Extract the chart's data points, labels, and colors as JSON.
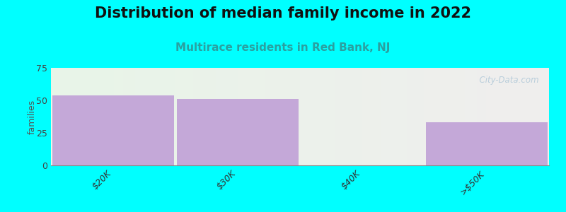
{
  "title": "Distribution of median family income in 2022",
  "subtitle": "Multirace residents in Red Bank, NJ",
  "categories": [
    "$20K",
    "$30K",
    "$40K",
    ">$50K"
  ],
  "values": [
    54,
    51,
    0,
    33
  ],
  "bar_color": "#c4a8d8",
  "background_color": "#00ffff",
  "ylabel": "families",
  "ylim": [
    0,
    75
  ],
  "yticks": [
    0,
    25,
    50,
    75
  ],
  "title_fontsize": 15,
  "subtitle_fontsize": 11,
  "subtitle_color": "#2aa0a0",
  "watermark": "  City-Data.com",
  "watermark_icon": "•"
}
